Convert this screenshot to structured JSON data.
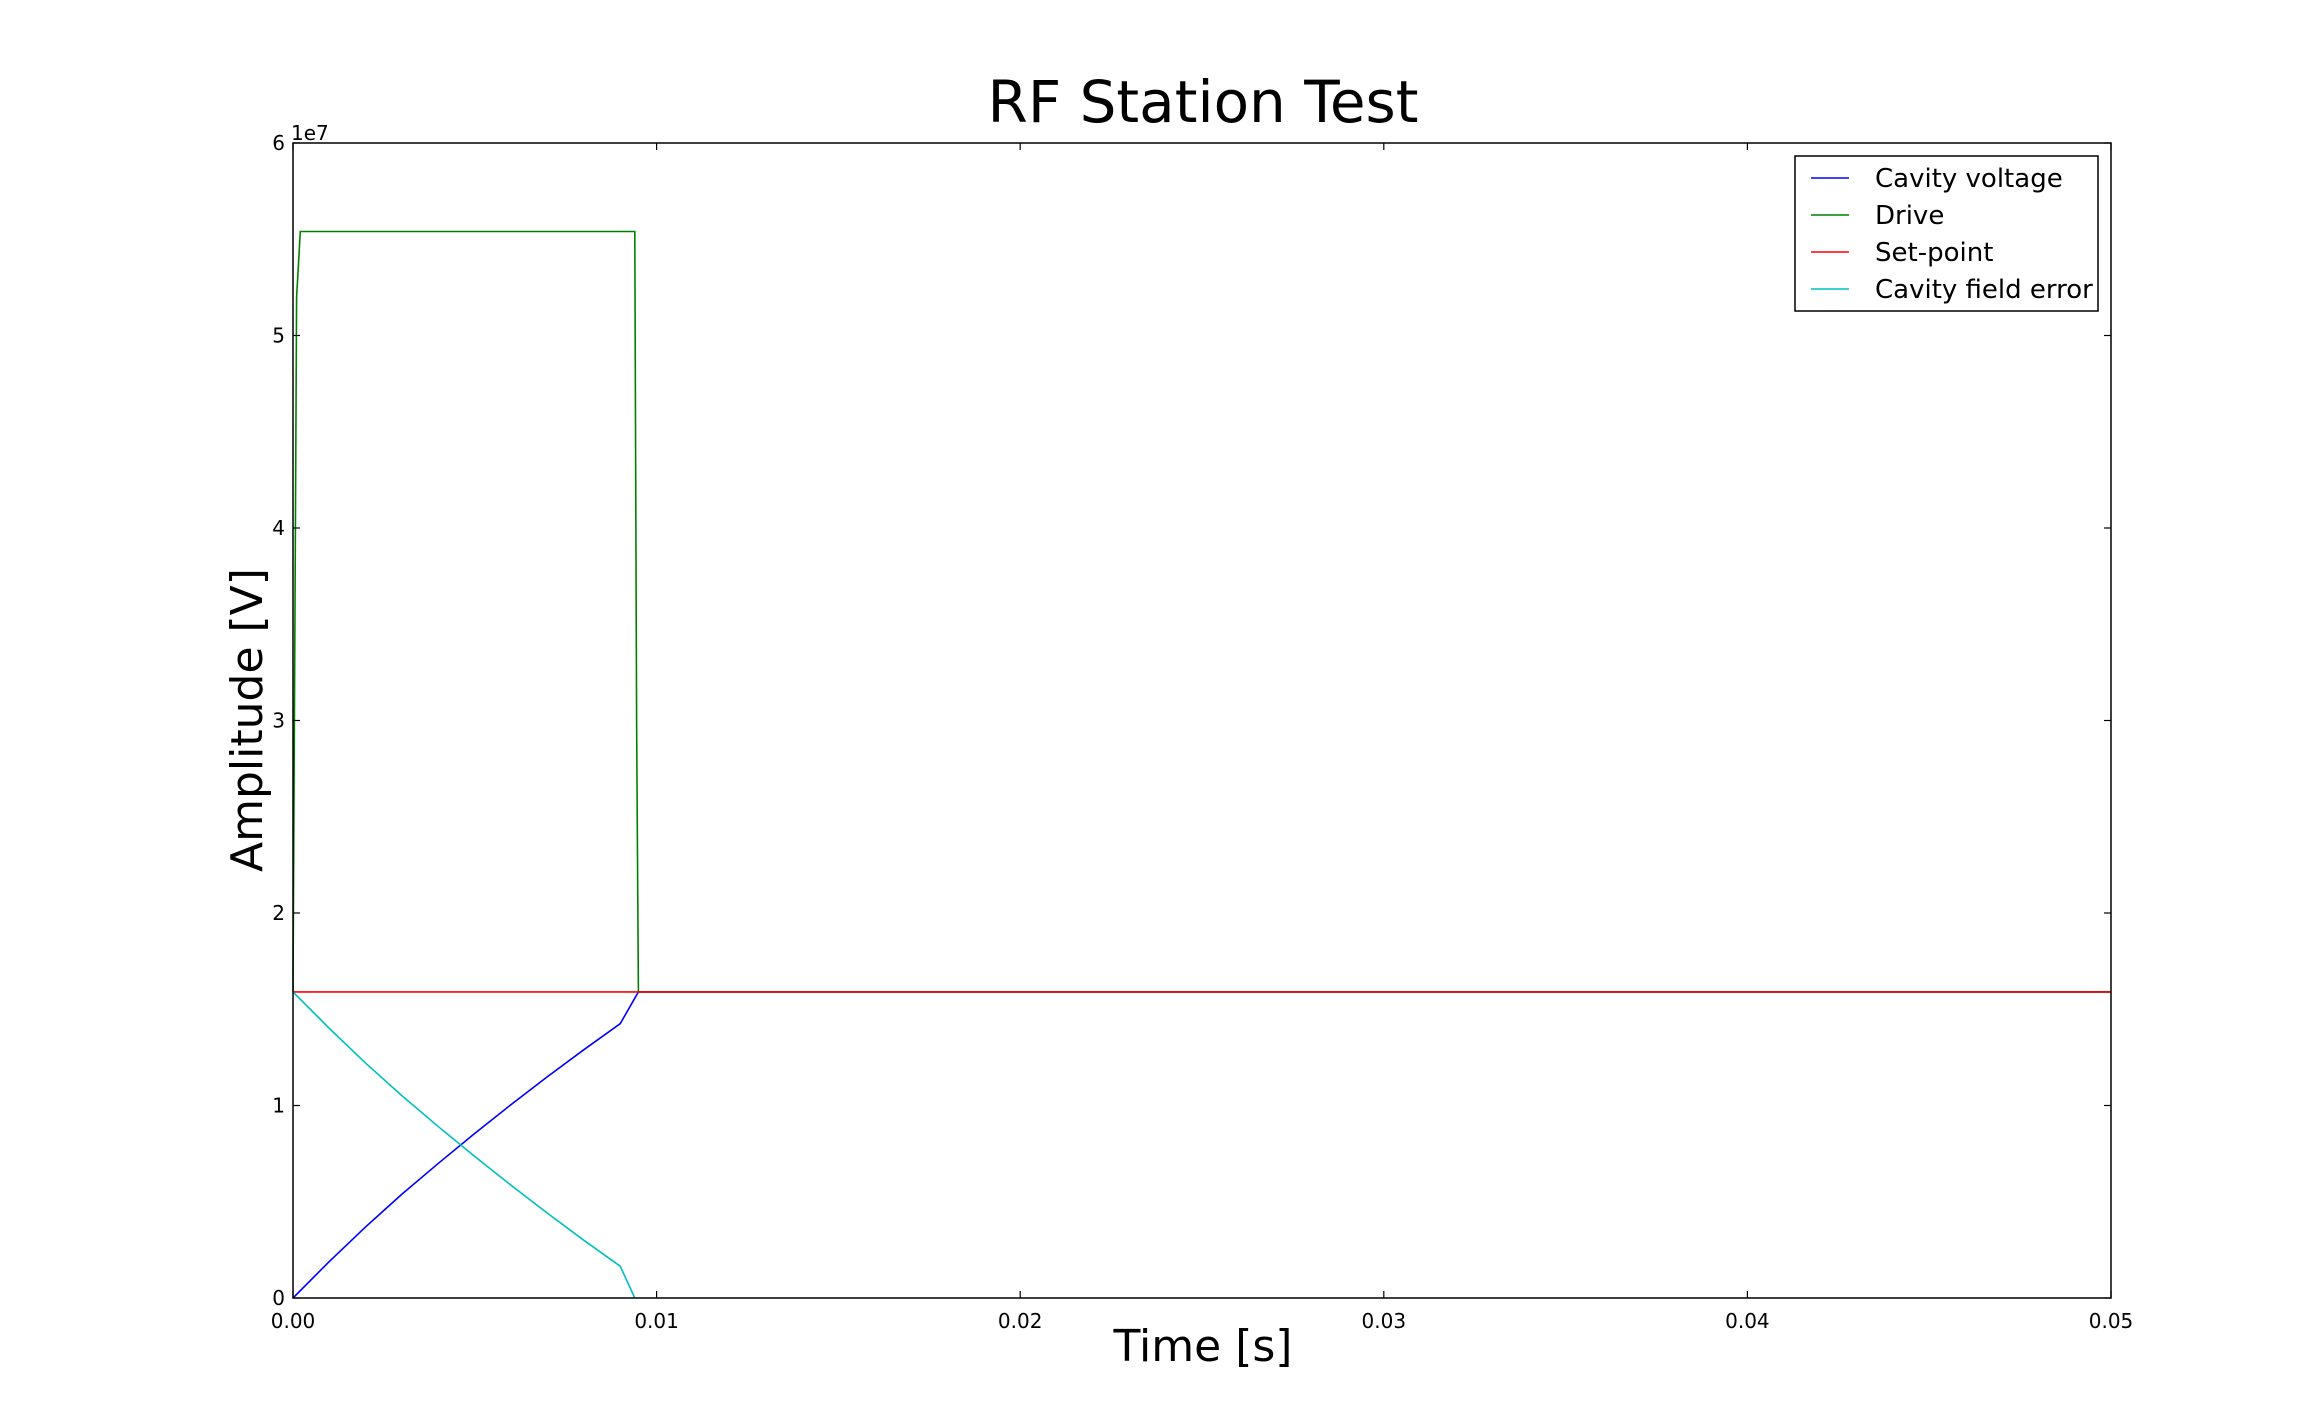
{
  "chart_data": {
    "type": "line",
    "title": "RF Station Test",
    "xlabel": "Time [s]",
    "ylabel": "Amplitude [V]",
    "xlim": [
      0,
      0.05
    ],
    "ylim": [
      0,
      60000000
    ],
    "x_ticks": [
      0,
      0.01,
      0.02,
      0.03,
      0.04,
      0.05
    ],
    "x_tick_labels": [
      "0.00",
      "0.01",
      "0.02",
      "0.03",
      "0.04",
      "0.05"
    ],
    "y_ticks": [
      0,
      10000000,
      20000000,
      30000000,
      40000000,
      50000000,
      60000000
    ],
    "y_tick_labels": [
      "0",
      "1",
      "2",
      "3",
      "4",
      "5",
      "6"
    ],
    "y_offset_text": "1e7",
    "grid": false,
    "legend_position": "top-right",
    "series": [
      {
        "name": "Cavity voltage",
        "color": "#0000ff",
        "x": [
          0,
          0.001,
          0.002,
          0.003,
          0.004,
          0.005,
          0.006,
          0.007,
          0.008,
          0.009,
          0.0095,
          0.05
        ],
        "values": [
          0,
          1900000,
          3700000,
          5400000,
          7000000,
          8550000,
          10050000,
          11500000,
          12900000,
          14250000,
          15900000,
          15900000
        ]
      },
      {
        "name": "Drive",
        "color": "#008000",
        "x": [
          0,
          0.0001,
          0.0002,
          0.0094,
          0.00945,
          0.0095,
          0.05
        ],
        "values": [
          15900000,
          52000000,
          55400000,
          55400000,
          30000000,
          15900000,
          15900000
        ]
      },
      {
        "name": "Set-point",
        "color": "#ff0000",
        "x": [
          0,
          0.05
        ],
        "values": [
          15900000,
          15900000
        ]
      },
      {
        "name": "Cavity field error",
        "color": "#00bfbf",
        "x": [
          0,
          0.001,
          0.002,
          0.003,
          0.004,
          0.005,
          0.006,
          0.007,
          0.008,
          0.009,
          0.0094
        ],
        "values": [
          15900000,
          14000000,
          12200000,
          10500000,
          8900000,
          7350000,
          5850000,
          4400000,
          3000000,
          1650000,
          0
        ]
      }
    ]
  }
}
